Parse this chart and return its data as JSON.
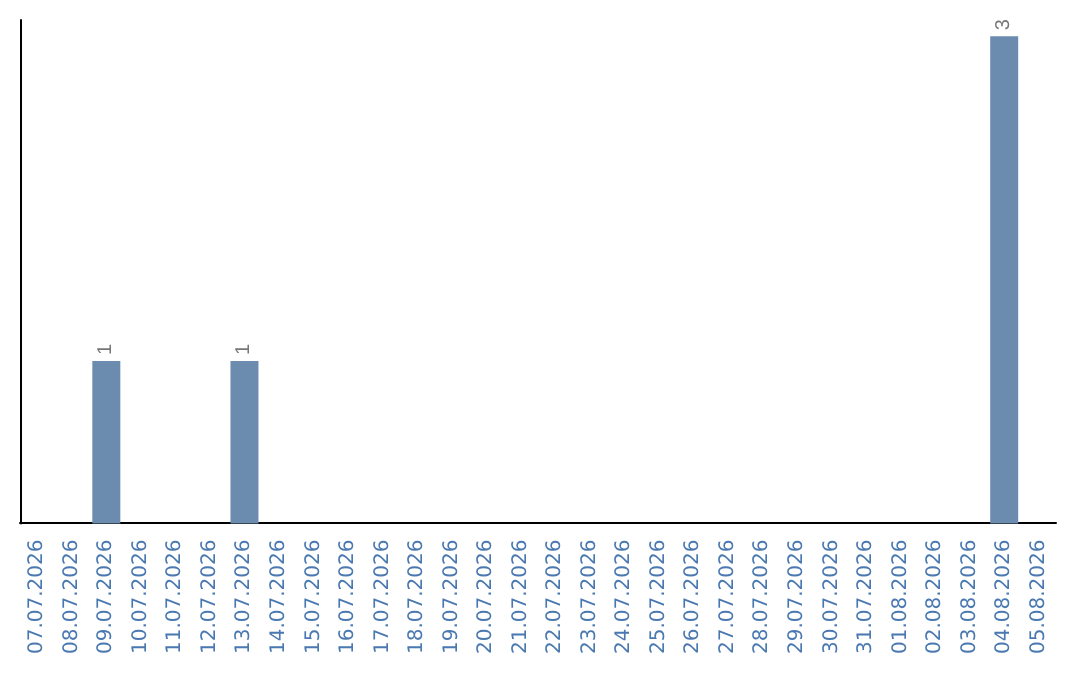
{
  "chart_data": {
    "type": "bar",
    "categories": [
      "07.07.2026",
      "08.07.2026",
      "09.07.2026",
      "10.07.2026",
      "11.07.2026",
      "12.07.2026",
      "13.07.2026",
      "14.07.2026",
      "15.07.2026",
      "16.07.2026",
      "17.07.2026",
      "18.07.2026",
      "19.07.2026",
      "20.07.2026",
      "21.07.2026",
      "22.07.2026",
      "23.07.2026",
      "24.07.2026",
      "25.07.2026",
      "26.07.2026",
      "27.07.2026",
      "28.07.2026",
      "29.07.2026",
      "30.07.2026",
      "31.07.2026",
      "01.08.2026",
      "02.08.2026",
      "03.08.2026",
      "04.08.2026",
      "05.08.2026"
    ],
    "values": [
      0,
      0,
      1,
      0,
      0,
      0,
      1,
      0,
      0,
      0,
      0,
      0,
      0,
      0,
      0,
      0,
      0,
      0,
      0,
      0,
      0,
      0,
      0,
      0,
      0,
      0,
      0,
      0,
      3,
      0
    ],
    "value_labels": [
      null,
      null,
      "1",
      null,
      null,
      null,
      "1",
      null,
      null,
      null,
      null,
      null,
      null,
      null,
      null,
      null,
      null,
      null,
      null,
      null,
      null,
      null,
      null,
      null,
      null,
      null,
      null,
      null,
      "3",
      null
    ],
    "color": "#6b8cae",
    "ylim": [
      0,
      3.1
    ],
    "tick_labels": "x",
    "grid": false
  }
}
